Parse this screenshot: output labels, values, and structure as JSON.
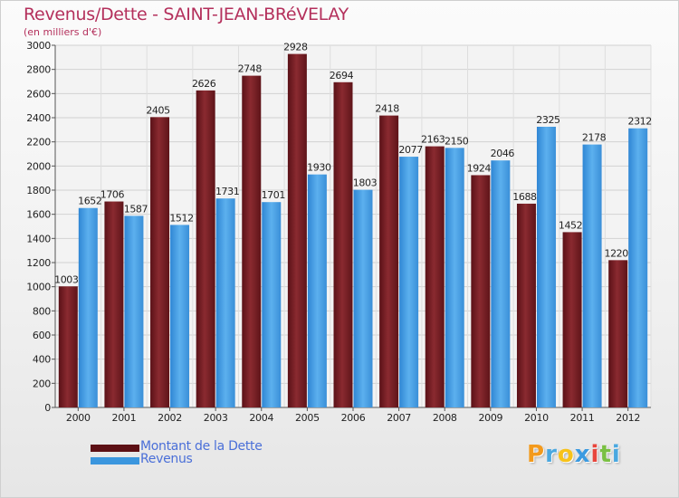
{
  "header": {
    "title": "Revenus/Dette - SAINT-JEAN-BRéVELAY",
    "subtitle": "(en milliers d'€)"
  },
  "chart_data": {
    "type": "bar",
    "categories": [
      "2000",
      "2001",
      "2002",
      "2003",
      "2004",
      "2005",
      "2006",
      "2007",
      "2008",
      "2009",
      "2010",
      "2011",
      "2012"
    ],
    "series": [
      {
        "name": "Montant de la Dette",
        "color": "#7a1f24",
        "values": [
          1003,
          1706,
          2405,
          2626,
          2748,
          2928,
          2694,
          2418,
          2163,
          1924,
          1688,
          1452,
          1220
        ]
      },
      {
        "name": "Revenus",
        "color": "#3b96de",
        "values": [
          1652,
          1587,
          1512,
          1731,
          1701,
          1930,
          1803,
          2077,
          2150,
          2046,
          2325,
          2178,
          2312
        ]
      }
    ],
    "ylim": [
      0,
      3000
    ],
    "yticks": [
      0,
      200,
      400,
      600,
      800,
      1000,
      1200,
      1400,
      1600,
      1800,
      2000,
      2200,
      2400,
      2600,
      2800,
      3000
    ],
    "grid": true,
    "legend": "bottom-left"
  },
  "legend": {
    "items": [
      {
        "label": "Montant de la Dette",
        "color": "#5c0f14"
      },
      {
        "label": "Revenus",
        "color": "#3b96de"
      }
    ]
  },
  "logo": {
    "letters": [
      "P",
      "r",
      "o",
      "x",
      "i",
      "t",
      "i"
    ],
    "colors": [
      "#f39a1c",
      "#4aa8e0",
      "#f7c21a",
      "#3b9ae0",
      "#e8453c",
      "#7ac043",
      "#4aa8e0"
    ]
  }
}
